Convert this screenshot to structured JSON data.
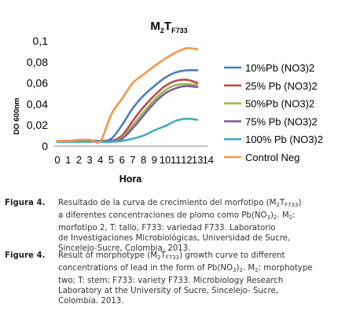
{
  "chart_data": {
    "type": "line",
    "title": "M2TF733",
    "title_parts": {
      "m": "M",
      "m_sub": "2",
      "t": "T",
      "t_sub": "F733"
    },
    "xlabel": "Hora",
    "ylabel": "DO 600nm",
    "x": [
      0,
      1,
      2,
      3,
      4,
      5,
      6,
      7,
      8,
      9,
      10,
      11,
      12,
      13
    ],
    "xlim": [
      0,
      14
    ],
    "ylim": [
      0,
      0.1
    ],
    "x_ticks": [
      "0",
      "1",
      "2",
      "3",
      "4",
      "5",
      "6",
      "7",
      "8",
      "9",
      "10",
      "11",
      "12",
      "13",
      "14"
    ],
    "y_ticks": [
      "0",
      "0,02",
      "0,04",
      "0,06",
      "0,08",
      "0,1"
    ],
    "grid": false,
    "legend_position": "right",
    "series": [
      {
        "name": "10%Pb (NO3)2",
        "color": "#4a7ebb",
        "values": [
          0.005,
          0.005,
          0.005,
          0.005,
          0.005,
          0.007,
          0.02,
          0.036,
          0.048,
          0.057,
          0.065,
          0.07,
          0.072,
          0.072
        ]
      },
      {
        "name": "25% Pb (NO3)2",
        "color": "#be4b48",
        "values": [
          0.005,
          0.005,
          0.005,
          0.005,
          0.005,
          0.005,
          0.01,
          0.024,
          0.037,
          0.048,
          0.057,
          0.062,
          0.063,
          0.06
        ]
      },
      {
        "name": "50%Pb (NO3)2",
        "color": "#98b954",
        "values": [
          0.005,
          0.005,
          0.005,
          0.005,
          0.005,
          0.005,
          0.008,
          0.02,
          0.032,
          0.044,
          0.053,
          0.058,
          0.059,
          0.058
        ]
      },
      {
        "name": "75% Pb (NO3)2",
        "color": "#7d60a0",
        "values": [
          0.005,
          0.005,
          0.005,
          0.005,
          0.005,
          0.005,
          0.007,
          0.017,
          0.029,
          0.041,
          0.05,
          0.055,
          0.057,
          0.056
        ]
      },
      {
        "name": "100% Pb (NO3)2",
        "color": "#46aac5",
        "values": [
          0.004,
          0.004,
          0.004,
          0.004,
          0.004,
          0.004,
          0.005,
          0.007,
          0.01,
          0.015,
          0.019,
          0.024,
          0.026,
          0.025
        ]
      },
      {
        "name": "Control Neg",
        "color": "#f79646",
        "values": [
          0.005,
          0.005,
          0.006,
          0.006,
          0.005,
          0.03,
          0.045,
          0.06,
          0.068,
          0.076,
          0.083,
          0.089,
          0.093,
          0.092
        ]
      }
    ]
  },
  "captions": [
    {
      "label": "Figura 4.",
      "lines": [
        [
          "Resultado de la curva de crecimiento del morfotipo (M",
          {
            "sub": "2"
          },
          "T",
          {
            "sub": "F733"
          },
          ")"
        ],
        [
          "a diferentes concentraciones de plomo como Pb(NO",
          {
            "sub": "3"
          },
          ")",
          {
            "sub": "2"
          },
          ". M",
          {
            "sub": "2"
          },
          ":"
        ],
        [
          "morfotipo 2, T: tallo, F733: variedad F733. Laboratorio"
        ],
        [
          "de Investigaciones Microbiológicas, Universidad de Sucre,"
        ],
        [
          "Sincelejo-Sucre, Colombia. 2013."
        ]
      ]
    },
    {
      "label": "Figure 4.",
      "lines": [
        [
          "Result of morphotype (M",
          {
            "sub": "2"
          },
          "T",
          {
            "sub": "F733"
          },
          ") growth curve to different"
        ],
        [
          "concentrations of lead in the form of Pb(NO",
          {
            "sub": "3"
          },
          ")",
          {
            "sub": "2"
          },
          ". M",
          {
            "sub": "2"
          },
          ": morphotype"
        ],
        [
          "two; T: stem; F733: variety F733. Microbiology Research"
        ],
        [
          "Laboratory at the University of Sucre, Sincelejo- Sucre,"
        ],
        [
          "Colombia. 2013."
        ]
      ]
    }
  ]
}
